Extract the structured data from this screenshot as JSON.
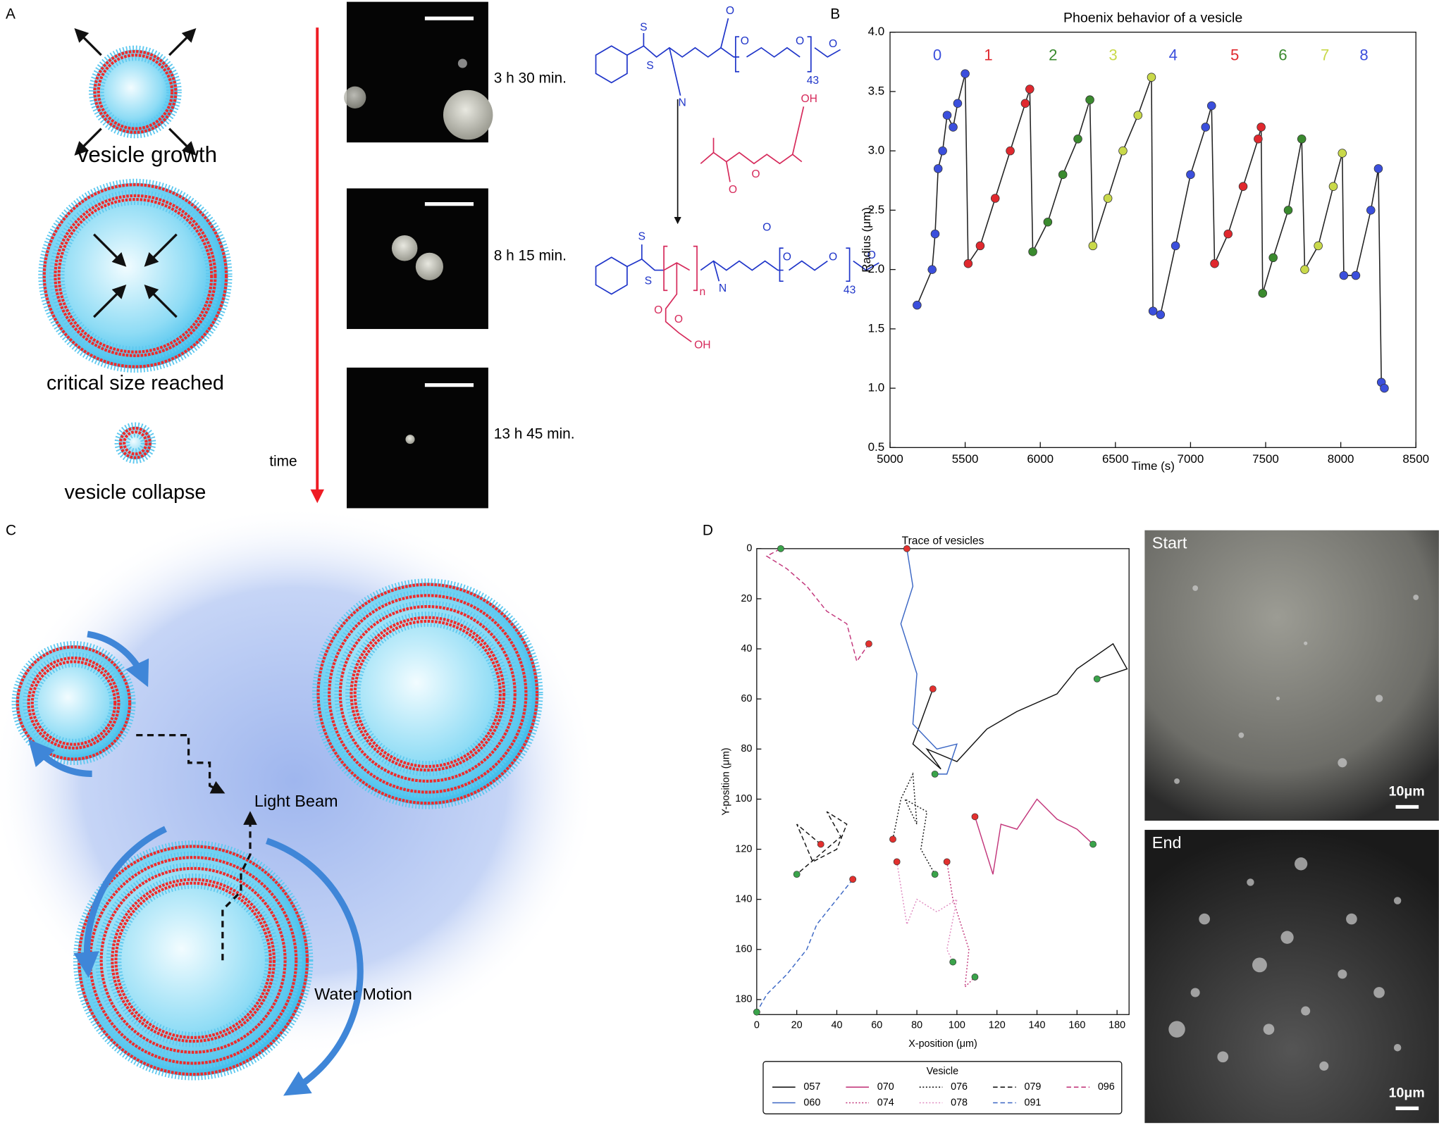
{
  "panel_labels": [
    "A",
    "B",
    "C",
    "D"
  ],
  "panel_a": {
    "steps": [
      "vesicle growth",
      "critical size reached",
      "vesicle collapse"
    ],
    "time_label": "time",
    "timepoints": [
      "3 h 30 min.",
      "8 h 15 min.",
      "13 h 45 min."
    ],
    "raft_agent": [
      "S",
      "S",
      "N",
      "O",
      "O",
      "O",
      "O",
      "43"
    ],
    "monomer": [
      "OH",
      "O",
      "O"
    ],
    "product": [
      "S",
      "S",
      "n",
      "N",
      "O",
      "O",
      "OH",
      "O",
      "O",
      "O",
      "O",
      "43"
    ]
  },
  "panel_c": {
    "labels": [
      "Light Beam",
      "Water Motion"
    ]
  },
  "panel_d_images": [
    {
      "label": "Start",
      "scale_bar": "10μm"
    },
    {
      "label": "End",
      "scale_bar": "10μm"
    }
  ],
  "chart_data": [
    {
      "type": "line",
      "title": "Phoenix behavior of a vesicle",
      "x_label": "Time (s)",
      "y_label": "Radius (μm)",
      "line_color": "#222222",
      "xlim": [
        5000,
        8500
      ],
      "xticks": [
        5000,
        5500,
        6000,
        6500,
        7000,
        7500,
        8000,
        8500
      ],
      "ylim": [
        0.5,
        4.0
      ],
      "yticks": [
        0.5,
        {
          "value": 1.0,
          "label": "1.0"
        },
        1.5,
        {
          "value": 2.0,
          "label": "2.0"
        },
        2.5,
        {
          "value": 3.0,
          "label": "3.0"
        },
        3.5,
        {
          "value": 4.0,
          "label": "4.0"
        }
      ],
      "series": [
        {
          "name": "0",
          "color": "#3b4fdc",
          "x": [
            5180,
            5280,
            5300,
            5320,
            5350,
            5380,
            5420,
            5450,
            5500
          ],
          "y": [
            1.7,
            2.0,
            2.3,
            2.85,
            3.0,
            3.3,
            3.2,
            3.4,
            3.65
          ]
        },
        {
          "name": "1",
          "color": "#e0282e",
          "x": [
            5520,
            5600,
            5700,
            5800,
            5900,
            5930
          ],
          "y": [
            2.05,
            2.2,
            2.6,
            3.0,
            3.4,
            3.52
          ]
        },
        {
          "name": "2",
          "color": "#3a8a2e",
          "x": [
            5950,
            6050,
            6150,
            6250,
            6330
          ],
          "y": [
            2.15,
            2.4,
            2.8,
            3.1,
            3.43
          ]
        },
        {
          "name": "3",
          "color": "#c9d94a",
          "x": [
            6350,
            6450,
            6550,
            6650,
            6740
          ],
          "y": [
            2.2,
            2.6,
            3.0,
            3.3,
            3.62
          ]
        },
        {
          "name": "4",
          "color": "#3b4fdc",
          "x": [
            6750,
            6800,
            6900,
            7000,
            7100,
            7140
          ],
          "y": [
            1.65,
            1.62,
            2.2,
            2.8,
            3.2,
            3.38
          ]
        },
        {
          "name": "5",
          "color": "#e0282e",
          "x": [
            7160,
            7250,
            7350,
            7450,
            7470
          ],
          "y": [
            2.05,
            2.3,
            2.7,
            3.1,
            3.2
          ]
        },
        {
          "name": "6",
          "color": "#3a8a2e",
          "x": [
            7480,
            7550,
            7650,
            7740
          ],
          "y": [
            1.8,
            2.1,
            2.5,
            3.1
          ]
        },
        {
          "name": "7",
          "color": "#c9d94a",
          "x": [
            7760,
            7850,
            7950,
            8010
          ],
          "y": [
            2.0,
            2.2,
            2.7,
            2.98
          ]
        },
        {
          "name": "8",
          "color": "#3b4fdc",
          "x": [
            8020,
            8100,
            8200,
            8250,
            8270,
            8290
          ],
          "y": [
            1.95,
            1.95,
            2.5,
            2.85,
            1.05,
            1.0
          ]
        }
      ]
    },
    {
      "type": "trace",
      "title": "Trace of vesicles",
      "x_label": "X-position (μm)",
      "y_label": "Y-position (μm)",
      "legend_title": "Vesicle",
      "y_inverted": true,
      "start_color": "#e3302e",
      "end_color": "#3aa34a",
      "xlim": [
        0,
        186
      ],
      "xticks": [
        0,
        20,
        40,
        60,
        80,
        100,
        120,
        140,
        160,
        180
      ],
      "ylim": [
        0,
        186
      ],
      "yticks": [
        0,
        20,
        40,
        60,
        80,
        100,
        120,
        140,
        160,
        180
      ],
      "series": [
        {
          "name": "057",
          "color": "#111111",
          "style": "solid",
          "x": [
            88,
            78,
            92,
            85,
            100,
            115,
            130,
            150,
            160,
            178,
            185,
            170
          ],
          "y": [
            56,
            78,
            88,
            80,
            85,
            72,
            65,
            58,
            48,
            38,
            48,
            52
          ]
        },
        {
          "name": "060",
          "color": "#3a66c4",
          "style": "solid",
          "x": [
            75,
            78,
            72,
            80,
            78,
            90,
            100,
            95,
            89
          ],
          "y": [
            0,
            15,
            30,
            50,
            70,
            80,
            78,
            90,
            90
          ]
        },
        {
          "name": "070",
          "color": "#c2357a",
          "style": "solid",
          "x": [
            109,
            118,
            122,
            130,
            140,
            150,
            160,
            168
          ],
          "y": [
            107,
            130,
            110,
            112,
            100,
            108,
            112,
            118
          ]
        },
        {
          "name": "074",
          "color": "#c2357a",
          "style": "dotted",
          "x": [
            95,
            98,
            102,
            106,
            104,
            109
          ],
          "y": [
            125,
            140,
            150,
            160,
            175,
            171
          ]
        },
        {
          "name": "076",
          "color": "#111111",
          "style": "dotted",
          "x": [
            68,
            72,
            78,
            80,
            74,
            85,
            82,
            89
          ],
          "y": [
            116,
            100,
            90,
            110,
            100,
            105,
            120,
            130
          ]
        },
        {
          "name": "078",
          "color": "#e08ac0",
          "style": "dotted",
          "x": [
            70,
            75,
            80,
            90,
            100,
            95,
            98
          ],
          "y": [
            125,
            150,
            140,
            145,
            140,
            160,
            165
          ]
        },
        {
          "name": "079",
          "color": "#111111",
          "style": "dashed",
          "x": [
            32,
            20,
            28,
            40,
            45,
            35,
            42,
            20
          ],
          "y": [
            118,
            110,
            125,
            120,
            110,
            105,
            115,
            130
          ]
        },
        {
          "name": "091",
          "color": "#3a66c4",
          "style": "dashed",
          "x": [
            48,
            40,
            30,
            25,
            15,
            5,
            0
          ],
          "y": [
            132,
            140,
            150,
            160,
            170,
            178,
            185
          ]
        },
        {
          "name": "096",
          "color": "#c2357a",
          "style": "dashed",
          "x": [
            56,
            50,
            45,
            35,
            25,
            15,
            5,
            12
          ],
          "y": [
            38,
            45,
            30,
            25,
            15,
            8,
            3,
            0
          ]
        }
      ]
    }
  ]
}
